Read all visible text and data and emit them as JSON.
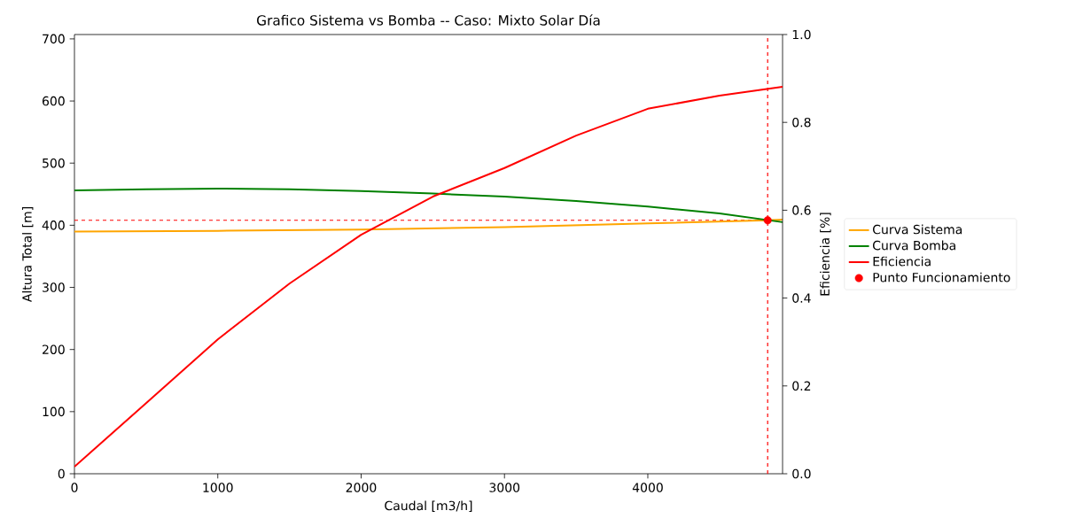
{
  "chart_data": {
    "type": "line",
    "title": "Grafico Sistema vs Bomba -- Caso: Mixto Solar Día",
    "xlabel": "Caudal [m3/h]",
    "ylabel": "Altura Total [m]",
    "y2label": "Eficiencia [%]",
    "xlim": [
      0,
      4940
    ],
    "ylim": [
      0,
      707
    ],
    "y2lim": [
      0,
      1
    ],
    "xticks": [
      0,
      1000,
      2000,
      3000,
      4000
    ],
    "yticks": [
      0,
      100,
      200,
      300,
      400,
      500,
      600,
      700
    ],
    "y2ticks": [
      {
        "value": 0,
        "label": "0.0"
      },
      0.2,
      0.4,
      0.6,
      0.8,
      {
        "value": 1,
        "label": "1.0"
      }
    ],
    "legend": "right",
    "grid": false,
    "line_style": "solid",
    "series": [
      {
        "name": "Curva Sistema",
        "color": "#ffa500",
        "marker": "none",
        "x": [
          0,
          1000,
          2000,
          3000,
          4000,
          4836,
          4940
        ],
        "values": [
          390,
          391,
          393,
          397,
          403,
          408,
          409
        ]
      },
      {
        "name": "Curva Bomba",
        "color": "#008000",
        "marker": "none",
        "x": [
          0,
          500,
          1000,
          1500,
          2000,
          2500,
          3000,
          3500,
          4000,
          4500,
          4940
        ],
        "values": [
          456,
          458,
          459,
          458,
          455,
          451,
          446,
          439,
          430,
          419,
          405
        ]
      },
      {
        "name": "Eficiencia",
        "axis": "y2",
        "color": "#ff0000",
        "marker": "none",
        "x": [
          0,
          500,
          1000,
          1500,
          2000,
          2500,
          3000,
          3500,
          4000,
          4500,
          4940
        ],
        "values": [
          0.016,
          0.161,
          0.306,
          0.433,
          0.544,
          0.631,
          0.696,
          0.77,
          0.831,
          0.861,
          0.881
        ]
      },
      {
        "name": "Punto Funcionamiento",
        "type": "scatter",
        "color": "#ff0000",
        "marker": "circle",
        "x": [
          4836
        ],
        "values": [
          408
        ]
      }
    ],
    "ref_lines": [
      {
        "axis": "y",
        "value": 408,
        "color": "#ff0000",
        "line_style": "dashed"
      },
      {
        "axis": "x",
        "value": 4836,
        "color": "#ff0000",
        "line_style": "dashed"
      }
    ]
  }
}
